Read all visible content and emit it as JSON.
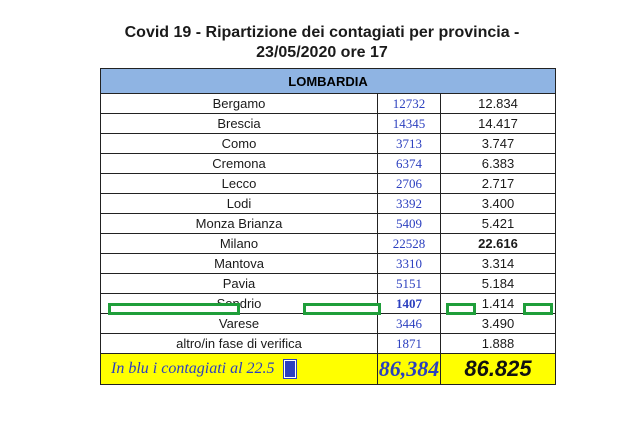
{
  "title_line1": "Covid 19 - Ripartizione dei contagiati per provincia -",
  "title_line2": "23/05/2020 ore 17",
  "region": "LOMBARDIA",
  "rows": [
    {
      "province": "Bergamo",
      "blue": "12732",
      "total": "12.834"
    },
    {
      "province": "Brescia",
      "blue": "14345",
      "total": "14.417"
    },
    {
      "province": "Como",
      "blue": "3713",
      "total": "3.747"
    },
    {
      "province": "Cremona",
      "blue": "6374",
      "total": "6.383"
    },
    {
      "province": "Lecco",
      "blue": "2706",
      "total": "2.717"
    },
    {
      "province": "Lodi",
      "blue": "3392",
      "total": "3.400"
    },
    {
      "province": "Monza Brianza",
      "blue": "5409",
      "total": "5.421"
    },
    {
      "province": "Milano",
      "blue": "22528",
      "total": "22.616"
    },
    {
      "province": "Mantova",
      "blue": "3310",
      "total": "3.314"
    },
    {
      "province": "Pavia",
      "blue": "5151",
      "total": "5.184"
    },
    {
      "province": "Sondrio",
      "blue": "1407",
      "total": "1.414"
    },
    {
      "province": "Varese",
      "blue": "3446",
      "total": "3.490"
    },
    {
      "province": "altro/in fase di verifica",
      "blue": "1871",
      "total": "1.888"
    }
  ],
  "footer": {
    "note": "In blu i contagiati al 22.5",
    "blue_total": "86,384",
    "total": "86.825"
  },
  "colors": {
    "header_bg": "#8fb4e3",
    "footer_bg": "#ffff00",
    "blue_text": "#2b3fbf",
    "highlight_border": "#1f9e3a"
  }
}
